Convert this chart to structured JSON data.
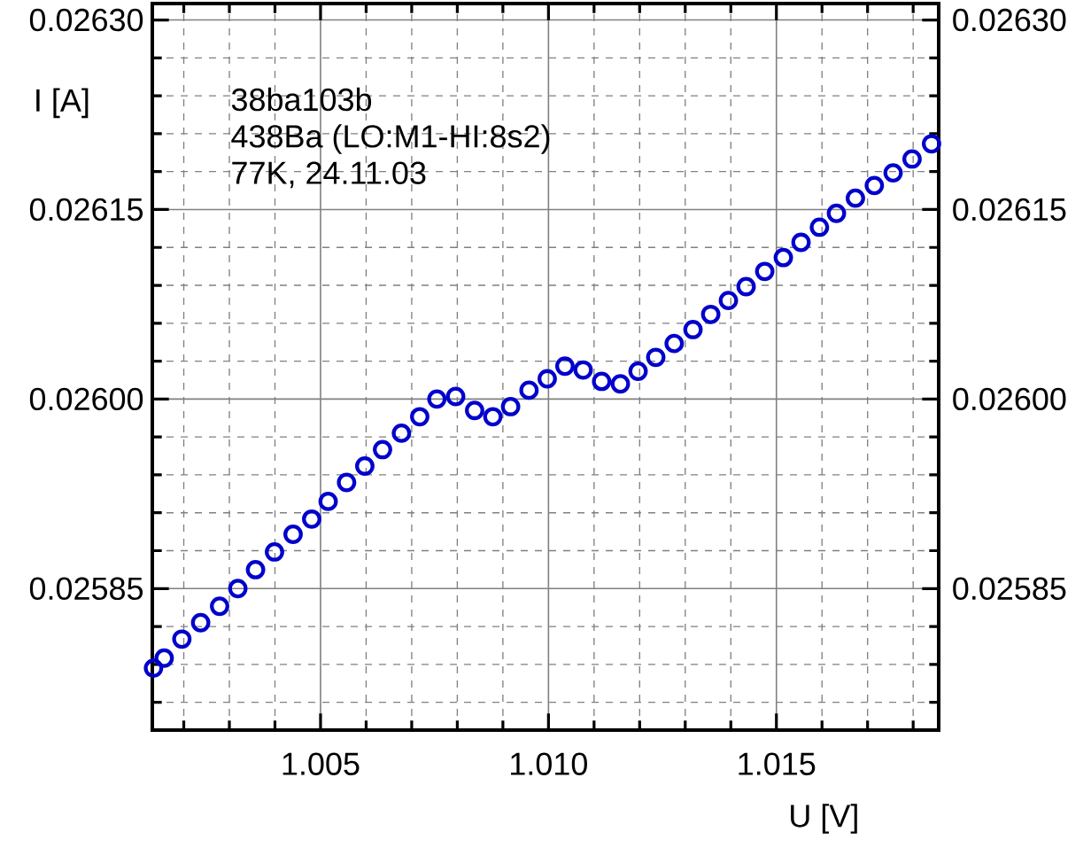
{
  "chart_data": {
    "type": "scatter",
    "xlabel": "U [V]",
    "ylabel": "I [A]",
    "annotations": [
      "38ba103b",
      "438Ba (LO:M1-HI:8s2)",
      "77K,   24.11.03"
    ],
    "x": [
      1.001336,
      1.00157,
      1.001958,
      1.00237,
      1.002786,
      1.003186,
      1.003574,
      1.00399,
      1.004398,
      1.004806,
      1.005167,
      1.005571,
      1.005971,
      1.00636,
      1.006775,
      1.007176,
      1.007552,
      1.007964,
      1.00838,
      1.00878,
      1.009169,
      1.009573,
      1.009973,
      1.010361,
      1.010761,
      1.011166,
      1.011577,
      1.011966,
      1.012354,
      1.012758,
      1.01317,
      1.013559,
      1.013947,
      1.014336,
      1.014744,
      1.015152,
      1.01554,
      1.015944,
      1.016317,
      1.016733,
      1.017148,
      1.01756,
      1.017976,
      1.018403
    ],
    "series": [
      {
        "color": "#0000cc",
        "values": [
          0.025787,
          0.025795,
          0.02581,
          0.025823,
          0.025836,
          0.02585,
          0.025865,
          0.025879,
          0.025893,
          0.025905,
          0.025919,
          0.025934,
          0.025947,
          0.02596,
          0.025973,
          0.025986,
          0.026,
          0.026002,
          0.025991,
          0.025986,
          0.025994,
          0.026007,
          0.026016,
          0.026026,
          0.026023,
          0.026014,
          0.026012,
          0.026022,
          0.026033,
          0.026044,
          0.026055,
          0.026067,
          0.026078,
          0.026089,
          0.026101,
          0.026112,
          0.026124,
          0.026136,
          0.026147,
          0.026159,
          0.026169,
          0.026179,
          0.02619,
          0.026202
        ]
      }
    ],
    "marker": "circle",
    "grid": true,
    "xlim": [
      1.00131,
      1.01856
    ],
    "ylim": [
      0.025738,
      0.026313
    ],
    "xticks": [
      {
        "value": 1.002,
        "label": null
      },
      {
        "value": 1.003,
        "label": null
      },
      {
        "value": 1.004,
        "label": null
      },
      {
        "value": 1.005,
        "label": "1.005"
      },
      {
        "value": 1.006,
        "label": null
      },
      {
        "value": 1.007,
        "label": null
      },
      {
        "value": 1.008,
        "label": null
      },
      {
        "value": 1.009,
        "label": null
      },
      {
        "value": 1.01,
        "label": "1.010"
      },
      {
        "value": 1.011,
        "label": null
      },
      {
        "value": 1.012,
        "label": null
      },
      {
        "value": 1.013,
        "label": null
      },
      {
        "value": 1.014,
        "label": null
      },
      {
        "value": 1.015,
        "label": "1.015"
      },
      {
        "value": 1.016,
        "label": null
      },
      {
        "value": 1.017,
        "label": null
      },
      {
        "value": 1.018,
        "label": null
      }
    ],
    "yticks": [
      {
        "value": 0.02576,
        "label": null
      },
      {
        "value": 0.02579,
        "label": null
      },
      {
        "value": 0.02582,
        "label": null
      },
      {
        "value": 0.02585,
        "label": "0.02585"
      },
      {
        "value": 0.02588,
        "label": null
      },
      {
        "value": 0.02591,
        "label": null
      },
      {
        "value": 0.02594,
        "label": null
      },
      {
        "value": 0.02597,
        "label": null
      },
      {
        "value": 0.026,
        "label": "0.02600"
      },
      {
        "value": 0.02603,
        "label": null
      },
      {
        "value": 0.02606,
        "label": null
      },
      {
        "value": 0.02609,
        "label": null
      },
      {
        "value": 0.02612,
        "label": null
      },
      {
        "value": 0.02615,
        "label": "0.02615"
      },
      {
        "value": 0.02618,
        "label": null
      },
      {
        "value": 0.02621,
        "label": null
      },
      {
        "value": 0.02624,
        "label": null
      },
      {
        "value": 0.02627,
        "label": null
      },
      {
        "value": 0.0263,
        "label": "0.02630"
      }
    ],
    "y2lim": [
      0.025738,
      0.026313
    ],
    "y2ticks": [
      {
        "value": 0.02585,
        "label": "0.02585"
      },
      {
        "value": 0.026,
        "label": "0.02600"
      },
      {
        "value": 0.02615,
        "label": "0.02615"
      },
      {
        "value": 0.0263,
        "label": "0.02630"
      }
    ]
  }
}
